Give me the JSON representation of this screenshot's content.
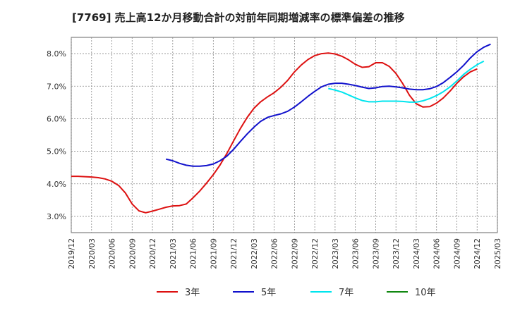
{
  "chart_data": {
    "type": "line",
    "title": "[7769]  売上高12か月移動合計の対前年同期増減率の標準偏差の推移",
    "xlabel": "",
    "ylabel": "",
    "ylim": [
      2.5,
      8.5
    ],
    "yticks": [
      3.0,
      4.0,
      5.0,
      6.0,
      7.0,
      8.0
    ],
    "ytick_labels": [
      "3.0%",
      "4.0%",
      "5.0%",
      "6.0%",
      "7.0%",
      "8.0%"
    ],
    "xticks": [
      "2019/12",
      "2020/03",
      "2020/06",
      "2020/09",
      "2020/12",
      "2021/03",
      "2021/06",
      "2021/09",
      "2021/12",
      "2022/03",
      "2022/06",
      "2022/09",
      "2022/12",
      "2023/03",
      "2023/06",
      "2023/09",
      "2023/12",
      "2024/03",
      "2024/06",
      "2024/09",
      "2024/12",
      "2025/03"
    ],
    "grid": true,
    "legend_position": "bottom",
    "x_start": "2019/12",
    "series": [
      {
        "name": "3年",
        "color": "#dd1111",
        "start": "2019/12",
        "values": [
          4.23,
          4.23,
          4.22,
          4.21,
          4.19,
          4.15,
          4.08,
          3.95,
          3.72,
          3.38,
          3.17,
          3.11,
          3.16,
          3.22,
          3.28,
          3.32,
          3.33,
          3.38,
          3.57,
          3.78,
          4.02,
          4.28,
          4.58,
          4.93,
          5.32,
          5.7,
          6.04,
          6.32,
          6.52,
          6.67,
          6.8,
          6.97,
          7.18,
          7.44,
          7.65,
          7.82,
          7.94,
          8.0,
          8.02,
          7.99,
          7.92,
          7.81,
          7.67,
          7.58,
          7.6,
          7.72,
          7.72,
          7.61,
          7.39,
          7.08,
          6.72,
          6.46,
          6.36,
          6.37,
          6.48,
          6.64,
          6.85,
          7.09,
          7.29,
          7.44,
          7.53
        ]
      },
      {
        "name": "5年",
        "color": "#1111cc",
        "start": "2021/02",
        "values": [
          4.76,
          4.71,
          4.63,
          4.57,
          4.54,
          4.54,
          4.56,
          4.61,
          4.71,
          4.85,
          5.06,
          5.3,
          5.53,
          5.74,
          5.92,
          6.04,
          6.1,
          6.15,
          6.23,
          6.36,
          6.52,
          6.69,
          6.84,
          6.98,
          7.06,
          7.09,
          7.09,
          7.06,
          7.02,
          6.97,
          6.93,
          6.95,
          6.99,
          7.0,
          6.98,
          6.95,
          6.91,
          6.89,
          6.89,
          6.92,
          6.99,
          7.11,
          7.27,
          7.44,
          7.64,
          7.87,
          8.06,
          8.2,
          8.29
        ]
      },
      {
        "name": "7年",
        "color": "#00e5ee",
        "start": "2023/02",
        "values": [
          6.93,
          6.88,
          6.82,
          6.73,
          6.64,
          6.56,
          6.52,
          6.52,
          6.54,
          6.54,
          6.54,
          6.53,
          6.51,
          6.51,
          6.55,
          6.62,
          6.71,
          6.83,
          6.98,
          7.16,
          7.36,
          7.52,
          7.66,
          7.77
        ]
      },
      {
        "name": "10年",
        "color": "#118811",
        "start": "",
        "values": []
      }
    ]
  }
}
